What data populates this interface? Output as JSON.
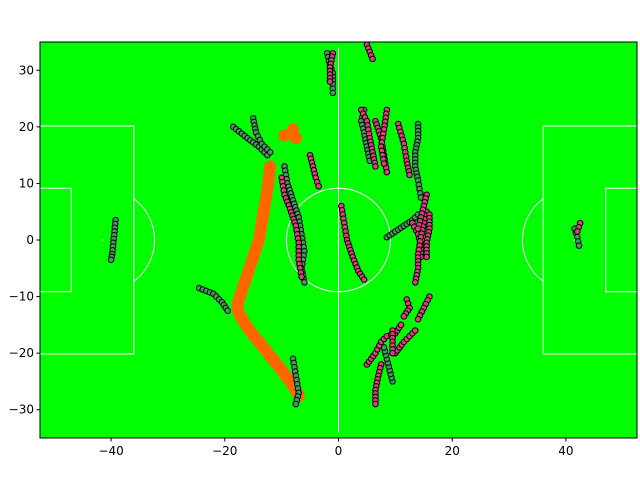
{
  "chart_data": {
    "type": "scatter",
    "title": "",
    "xlabel": "",
    "ylabel": "",
    "xlim": [
      -52.5,
      52.5
    ],
    "ylim": [
      -35,
      35
    ],
    "grid": false,
    "xticks": [
      -40,
      -20,
      0,
      20,
      40
    ],
    "yticks": [
      -30,
      -20,
      -10,
      0,
      10,
      20,
      30
    ],
    "xtick_labels": [
      "−40",
      "−20",
      "0",
      "20",
      "40"
    ],
    "ytick_labels": [
      "−30",
      "−20",
      "−10",
      "0",
      "10",
      "20",
      "30"
    ],
    "colors": {
      "pitch": "#00ff00",
      "lines": "#ffffff",
      "team_a": "#3f9f5f",
      "team_b": "#e0407a",
      "ball": "#ff6600",
      "outline": "#000000"
    },
    "pitch": {
      "length": 105,
      "width": 68,
      "penalty_area_depth": 16.5,
      "penalty_area_width": 40.3,
      "goal_area_depth": 5.5,
      "goal_area_width": 18.3,
      "center_circle_radius": 9.15,
      "penalty_spot": 11
    },
    "ball_path": [
      [
        -12,
        13
      ],
      [
        -12.5,
        9
      ],
      [
        -13,
        6
      ],
      [
        -13.5,
        3
      ],
      [
        -14,
        0
      ],
      [
        -15,
        -3
      ],
      [
        -16,
        -6
      ],
      [
        -17,
        -9
      ],
      [
        -17.8,
        -11.5
      ],
      [
        -17.5,
        -13
      ],
      [
        -16,
        -15.5
      ],
      [
        -14,
        -18
      ],
      [
        -12,
        -20.5
      ],
      [
        -10,
        -23
      ],
      [
        -8.5,
        -25
      ],
      [
        -7.5,
        -26.5
      ],
      [
        -7,
        -27.5
      ]
    ],
    "ball_extra": [
      [
        -9.5,
        18.5
      ],
      [
        -8,
        19.5
      ],
      [
        -7.5,
        18
      ]
    ],
    "series": [
      {
        "team": "a",
        "tracks": [
          [
            [
              -39.2,
              3.5
            ],
            [
              -39.4,
              1.5
            ],
            [
              -39.6,
              -0.5
            ],
            [
              -39.8,
              -2.5
            ],
            [
              -40.0,
              -3.5
            ]
          ],
          [
            [
              -18.5,
              20
            ],
            [
              -16,
              18
            ],
            [
              -14,
              16.5
            ],
            [
              -12.5,
              15
            ]
          ],
          [
            [
              -15,
              21.5
            ],
            [
              -14.5,
              19
            ],
            [
              -13.5,
              17
            ],
            [
              -12,
              15.5
            ]
          ],
          [
            [
              -24.5,
              -8.5
            ],
            [
              -22,
              -9.5
            ],
            [
              -20.5,
              -11
            ],
            [
              -19.5,
              -12.5
            ]
          ],
          [
            [
              -9.5,
              13
            ],
            [
              -9,
              10
            ],
            [
              -8,
              7
            ],
            [
              -7,
              4
            ],
            [
              -6.5,
              1
            ],
            [
              -6,
              -2
            ],
            [
              -6.5,
              -5
            ],
            [
              -6,
              -7.5
            ]
          ],
          [
            [
              -8,
              -21
            ],
            [
              -7.5,
              -24
            ],
            [
              -7,
              -27
            ],
            [
              -7.5,
              -29
            ]
          ],
          [
            [
              -2,
              33
            ],
            [
              -1.5,
              31
            ],
            [
              -1,
              29.5
            ],
            [
              -1,
              27.5
            ],
            [
              -1,
              26
            ]
          ],
          [
            [
              4.5,
              23
            ],
            [
              4,
              21
            ],
            [
              4.5,
              19
            ],
            [
              5,
              16.5
            ],
            [
              5.5,
              14
            ]
          ],
          [
            [
              8.5,
              0.5
            ],
            [
              10,
              1.5
            ],
            [
              11.5,
              2.5
            ],
            [
              13,
              3.5
            ],
            [
              14,
              4.5
            ]
          ],
          [
            [
              14,
              20.5
            ],
            [
              14,
              18
            ],
            [
              13.5,
              15.5
            ],
            [
              13.5,
              13
            ],
            [
              14,
              10.5
            ],
            [
              14.5,
              7.5
            ]
          ],
          [
            [
              9.5,
              -25
            ],
            [
              9,
              -23
            ],
            [
              8.5,
              -21
            ],
            [
              8,
              -19
            ]
          ],
          [
            [
              41.5,
              2
            ],
            [
              42,
              0.5
            ],
            [
              42.3,
              -1
            ]
          ]
        ]
      },
      {
        "team": "b",
        "tracks": [
          [
            [
              -10,
              11
            ],
            [
              -9.5,
              8
            ],
            [
              -8.5,
              5.5
            ],
            [
              -7.5,
              2.5
            ],
            [
              -7,
              -0.5
            ],
            [
              -7,
              -3.5
            ],
            [
              -6.5,
              -6.5
            ]
          ],
          [
            [
              -5,
              15
            ],
            [
              -4.5,
              13
            ],
            [
              -4,
              11
            ],
            [
              -3.5,
              9.5
            ]
          ],
          [
            [
              -1,
              33
            ],
            [
              -1.5,
              30.5
            ],
            [
              -1.5,
              28
            ]
          ],
          [
            [
              0.5,
              6
            ],
            [
              1,
              3
            ],
            [
              1.5,
              0
            ],
            [
              2.5,
              -3
            ],
            [
              3.5,
              -5.5
            ],
            [
              4.5,
              -7
            ]
          ],
          [
            [
              5,
              34.5
            ],
            [
              6,
              32
            ]
          ],
          [
            [
              4,
              23
            ],
            [
              5,
              21
            ],
            [
              5.5,
              18
            ],
            [
              6,
              15.5
            ],
            [
              6.5,
              13
            ]
          ],
          [
            [
              6.5,
              21
            ],
            [
              7.5,
              18
            ],
            [
              8,
              15
            ],
            [
              8.5,
              12
            ]
          ],
          [
            [
              8.5,
              23
            ],
            [
              8,
              19.5
            ],
            [
              7.5,
              16.5
            ],
            [
              8,
              13.5
            ]
          ],
          [
            [
              10.5,
              20.5
            ],
            [
              11.5,
              17
            ],
            [
              12,
              14
            ],
            [
              12.5,
              11.5
            ]
          ],
          [
            [
              13,
              3
            ],
            [
              14,
              1
            ],
            [
              14.5,
              -1
            ],
            [
              14.5,
              -3
            ]
          ],
          [
            [
              15.5,
              5
            ],
            [
              15,
              3
            ],
            [
              14.5,
              0.5
            ],
            [
              14,
              -2.5
            ],
            [
              14,
              -5
            ],
            [
              13.5,
              -7.5
            ]
          ],
          [
            [
              15.5,
              8
            ],
            [
              15,
              6
            ],
            [
              14.5,
              4
            ],
            [
              14,
              2
            ]
          ],
          [
            [
              16,
              4.5
            ],
            [
              16,
              2
            ],
            [
              15.5,
              -0.5
            ],
            [
              15.5,
              -3
            ]
          ],
          [
            [
              5,
              -22
            ],
            [
              6.5,
              -20
            ],
            [
              7.5,
              -18
            ],
            [
              8.5,
              -17
            ],
            [
              10,
              -16.5
            ],
            [
              11,
              -15
            ]
          ],
          [
            [
              10,
              -20
            ],
            [
              11.5,
              -18
            ],
            [
              12.5,
              -17
            ],
            [
              13.5,
              -16
            ]
          ],
          [
            [
              16,
              -10
            ],
            [
              15,
              -12
            ],
            [
              14,
              -14
            ]
          ],
          [
            [
              12,
              -10.5
            ],
            [
              12.5,
              -12
            ],
            [
              11.5,
              -13.5
            ]
          ],
          [
            [
              9.5,
              -16
            ],
            [
              9.5,
              -18
            ],
            [
              9.5,
              -20
            ]
          ],
          [
            [
              7.5,
              -22
            ],
            [
              7,
              -24
            ],
            [
              6.5,
              -26.5
            ],
            [
              6.5,
              -29
            ]
          ],
          [
            [
              42.5,
              3
            ],
            [
              42,
              1.5
            ]
          ]
        ]
      }
    ]
  }
}
